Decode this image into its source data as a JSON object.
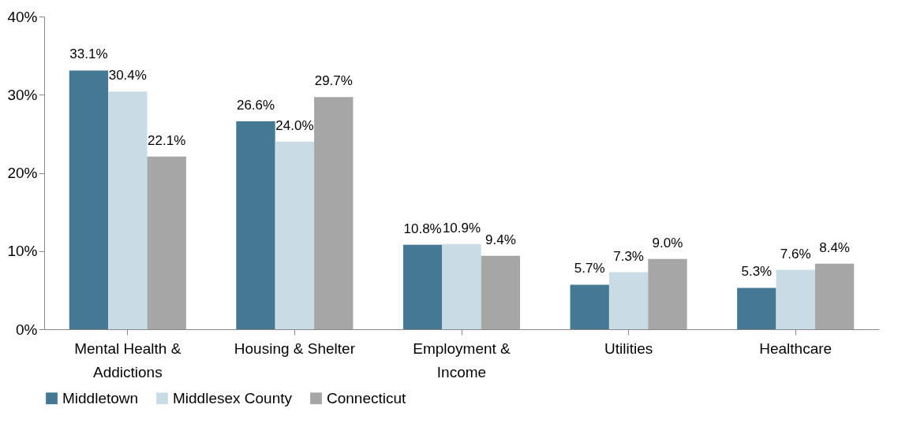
{
  "chart_data": {
    "type": "bar",
    "categories": [
      "Mental Health & Addictions",
      "Housing & Shelter",
      "Employment & Income",
      "Utilities",
      "Healthcare"
    ],
    "series": [
      {
        "name": "Middletown",
        "color": "#457993",
        "values": [
          33.1,
          26.6,
          10.8,
          5.7,
          5.3
        ],
        "value_labels": [
          "33.1%",
          "26.6%",
          "10.8%",
          "5.7%",
          "5.3%"
        ]
      },
      {
        "name": "Middlesex County",
        "color": "#c9dce6",
        "values": [
          30.4,
          24.0,
          10.9,
          7.3,
          7.6
        ],
        "value_labels": [
          "30.4%",
          "24.0%",
          "10.9%",
          "7.3%",
          "7.6%"
        ]
      },
      {
        "name": "Connecticut",
        "color": "#a6a6a6",
        "values": [
          22.1,
          29.7,
          9.4,
          9.0,
          8.4
        ],
        "value_labels": [
          "22.1%",
          "29.7%",
          "9.4%",
          "9.0%",
          "8.4%"
        ]
      }
    ],
    "ylim": [
      0,
      40
    ],
    "yticks": [
      {
        "value": 0,
        "label": "0%"
      },
      {
        "value": 10,
        "label": "10%"
      },
      {
        "value": 20,
        "label": "20%"
      },
      {
        "value": 30,
        "label": "30%"
      },
      {
        "value": 40,
        "label": "40%"
      }
    ],
    "grid": false,
    "legend": "bottom"
  }
}
